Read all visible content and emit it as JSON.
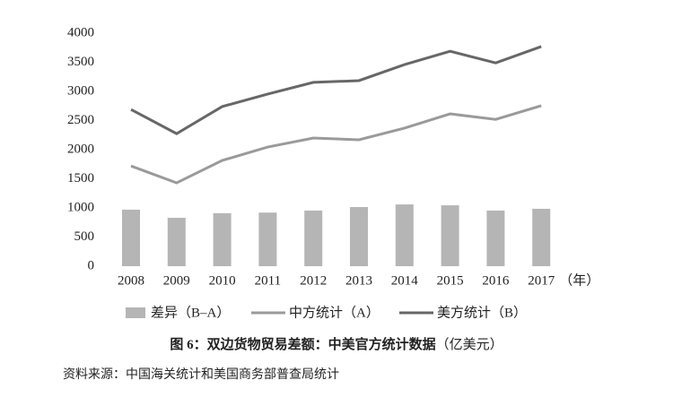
{
  "chart_data": {
    "type": "bar_line",
    "title": "图 6：双边货物贸易差额：中美官方统计数据",
    "title_unit": "（亿美元）",
    "source": "资料来源：中国海关统计和美国商务部普查局统计",
    "x_unit": "（年）",
    "categories": [
      "2008",
      "2009",
      "2010",
      "2011",
      "2012",
      "2013",
      "2014",
      "2015",
      "2016",
      "2017"
    ],
    "series": [
      {
        "name": "差异（B–A）",
        "type": "bar",
        "color": "#b5b5b5",
        "values": [
          970,
          830,
          910,
          920,
          955,
          1015,
          1060,
          1045,
          955,
          985
        ]
      },
      {
        "name": "中方统计（A）",
        "type": "line",
        "color": "#9a9a9a",
        "values": [
          1720,
          1430,
          1815,
          2045,
          2200,
          2170,
          2370,
          2615,
          2520,
          2755
        ]
      },
      {
        "name": "美方统计（B）",
        "type": "line",
        "color": "#676767",
        "values": [
          2690,
          2275,
          2740,
          2955,
          3155,
          3185,
          3460,
          3690,
          3490,
          3770
        ]
      }
    ],
    "ylim": [
      0,
      4000
    ],
    "yticks": [
      0,
      500,
      1000,
      1500,
      2000,
      2500,
      3000,
      3500,
      4000
    ],
    "grid": false
  }
}
